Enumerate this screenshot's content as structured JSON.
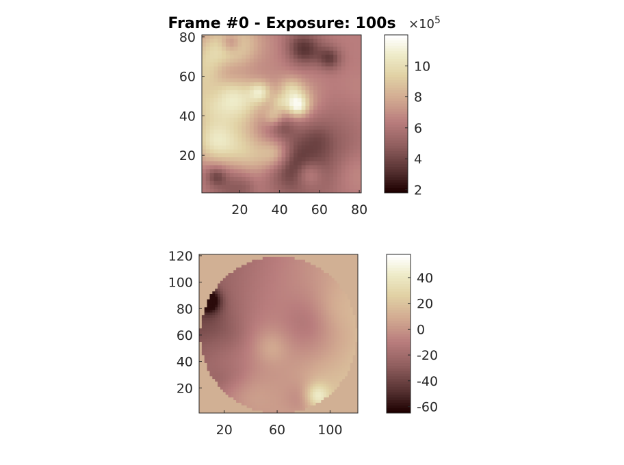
{
  "figure": {
    "title": "Frame #0 - Exposure: 100s"
  },
  "chart_data": [
    {
      "type": "heatmap",
      "title": "Frame #0 - Exposure: 100s",
      "xlabel": "",
      "ylabel": "",
      "xlim": [
        1,
        81
      ],
      "ylim": [
        1,
        81
      ],
      "x_ticks": [
        20,
        40,
        60,
        80
      ],
      "y_ticks": [
        20,
        40,
        60,
        80
      ],
      "colormap": "pink",
      "colorbar": {
        "min": 180000,
        "max": 1200000,
        "ticks": [
          2,
          4,
          6,
          8,
          10
        ],
        "tick_labels": [
          "2",
          "4",
          "6",
          "8",
          "10"
        ],
        "exponent_label": "×10",
        "exponent": "5"
      },
      "grid": false
    },
    {
      "type": "heatmap",
      "title": "",
      "xlabel": "",
      "ylabel": "",
      "xlim": [
        1,
        121
      ],
      "ylim": [
        1,
        121
      ],
      "x_ticks": [
        20,
        60,
        100
      ],
      "y_ticks": [
        20,
        40,
        60,
        80,
        100,
        120
      ],
      "colormap": "pink",
      "mask": "circular aperture",
      "colorbar": {
        "min": -65,
        "max": 58,
        "ticks": [
          -60,
          -40,
          -20,
          0,
          20,
          40
        ],
        "tick_labels": [
          "-60",
          "-40",
          "-20",
          "0",
          "20",
          "40"
        ]
      },
      "grid": false
    }
  ]
}
